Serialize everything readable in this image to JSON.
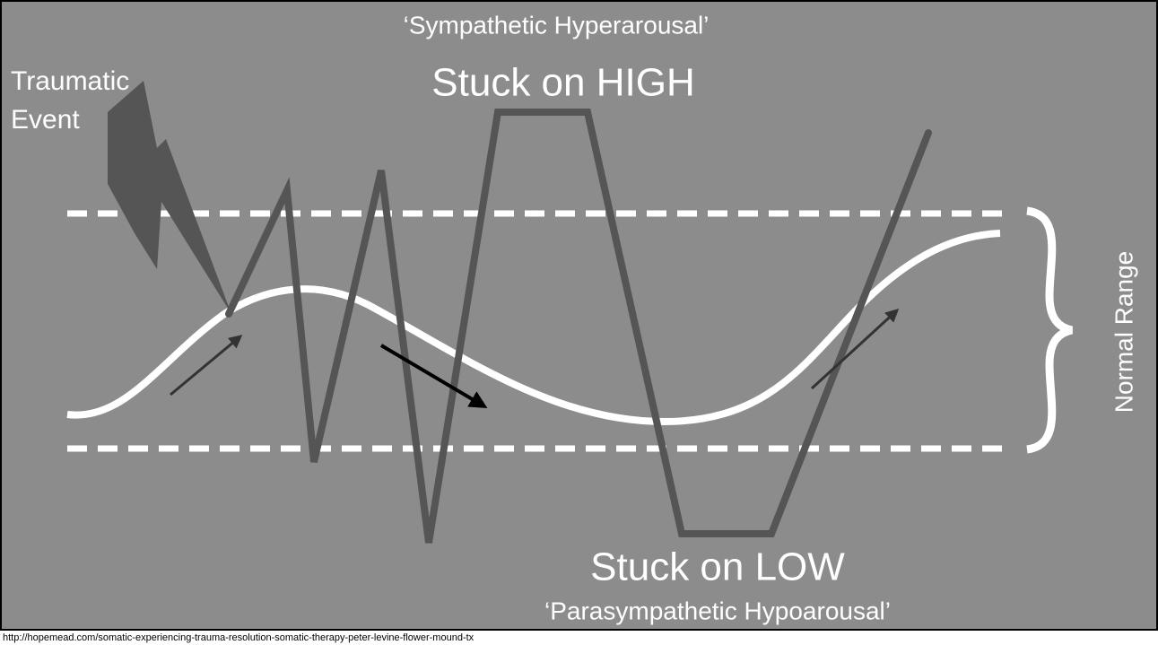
{
  "title": "‘Sympathetic Hyperarousal’",
  "high_label": "Stuck on HIGH",
  "event_label": {
    "lines": [
      "Traumatic",
      "Event"
    ]
  },
  "range_label": "Normal Range",
  "low_label": "Stuck on LOW",
  "subtitle": "‘Parasympathetic Hypoarousal’",
  "source": "http://hopemead.com/somatic-experiencing-trauma-resolution-somatic-therapy-peter-levine-flower-mound-tx"
}
